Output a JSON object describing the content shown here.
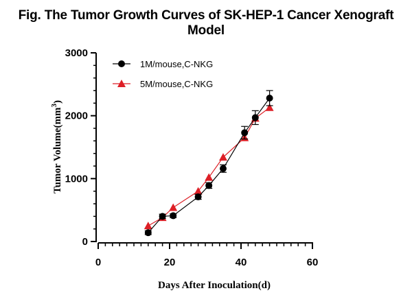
{
  "chart_data": {
    "type": "line",
    "title": "Fig. The Tumor Growth Curves of SK-HEP-1 Cancer Xenograft Model",
    "xlabel": "Days After Inoculation(d)",
    "ylabel_main": "Tumor Volume(mm",
    "ylabel_sup": "3",
    "ylabel_close": ")",
    "xlim": [
      0,
      60
    ],
    "ylim": [
      0,
      3000
    ],
    "x_ticks": [
      "0",
      "20",
      "40",
      "60"
    ],
    "y_ticks": [
      "0",
      "1000",
      "2000",
      "3000"
    ],
    "x_minor_step": 2,
    "y_minor_step": 200,
    "grid": false,
    "legend_position": "top-left",
    "series": [
      {
        "name": "1M/mouse,C-NKG",
        "marker": "circle",
        "color": "#000000",
        "x": [
          14,
          18,
          21,
          28,
          31,
          35,
          41,
          44,
          48
        ],
        "y": [
          140,
          400,
          410,
          710,
          890,
          1160,
          1730,
          1970,
          2280
        ],
        "err": [
          30,
          35,
          30,
          40,
          45,
          60,
          100,
          110,
          120
        ]
      },
      {
        "name": "5M/mouse,C-NKG",
        "marker": "triangle",
        "color": "#dd1f26",
        "x": [
          14,
          18,
          21,
          28,
          31,
          35,
          41,
          44,
          48
        ],
        "y": [
          250,
          380,
          540,
          800,
          1020,
          1340,
          1650,
          1960,
          2130
        ],
        "err": [
          0,
          0,
          0,
          0,
          0,
          0,
          0,
          0,
          0
        ]
      }
    ]
  }
}
